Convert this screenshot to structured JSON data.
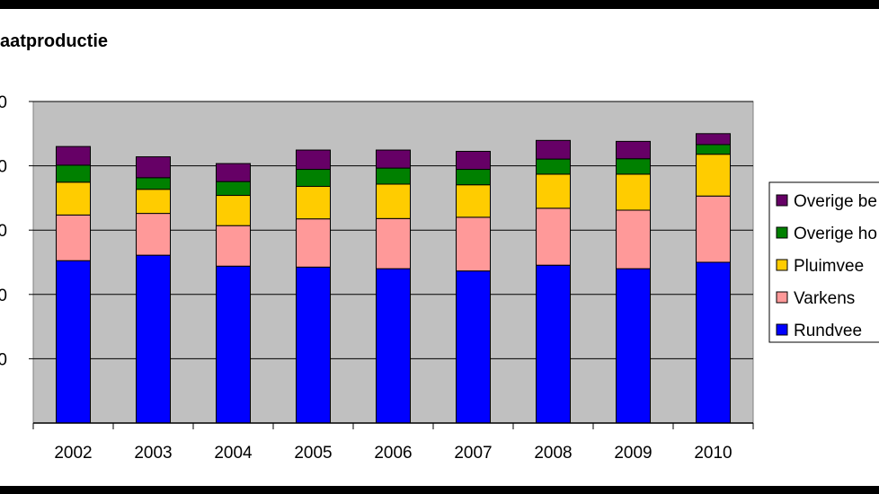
{
  "chart_data": {
    "type": "bar",
    "stacked": true,
    "title": "aatproductie",
    "categories": [
      "2002",
      "2003",
      "2004",
      "2005",
      "2006",
      "2007",
      "2008",
      "2009",
      "2010"
    ],
    "y_tick_labels": [
      "0",
      "0",
      "0",
      "0",
      "0"
    ],
    "ylim": [
      0,
      100
    ],
    "grid": true,
    "legend_position": "right",
    "series": [
      {
        "name": "Rundvee",
        "color": "#0000ff",
        "values": [
          50.5,
          52.2,
          48.8,
          48.5,
          48.0,
          47.3,
          49.1,
          48.0,
          50.0
        ]
      },
      {
        "name": "Varkens",
        "color": "#ff9999",
        "values": [
          14.2,
          13.0,
          12.6,
          15.0,
          15.6,
          16.7,
          17.7,
          18.2,
          20.6
        ]
      },
      {
        "name": "Pluimvee",
        "color": "#ffcc00",
        "values": [
          10.2,
          7.5,
          9.4,
          10.1,
          10.7,
          10.1,
          10.6,
          11.2,
          13.0
        ]
      },
      {
        "name": "Overige ho",
        "color": "#008000",
        "values": [
          5.3,
          3.6,
          4.3,
          5.3,
          5.0,
          4.8,
          4.7,
          4.8,
          3.0
        ]
      },
      {
        "name": "Overige be",
        "color": "#660066",
        "values": [
          5.8,
          6.5,
          5.6,
          6.0,
          5.6,
          5.6,
          5.8,
          5.4,
          3.4
        ]
      }
    ]
  }
}
